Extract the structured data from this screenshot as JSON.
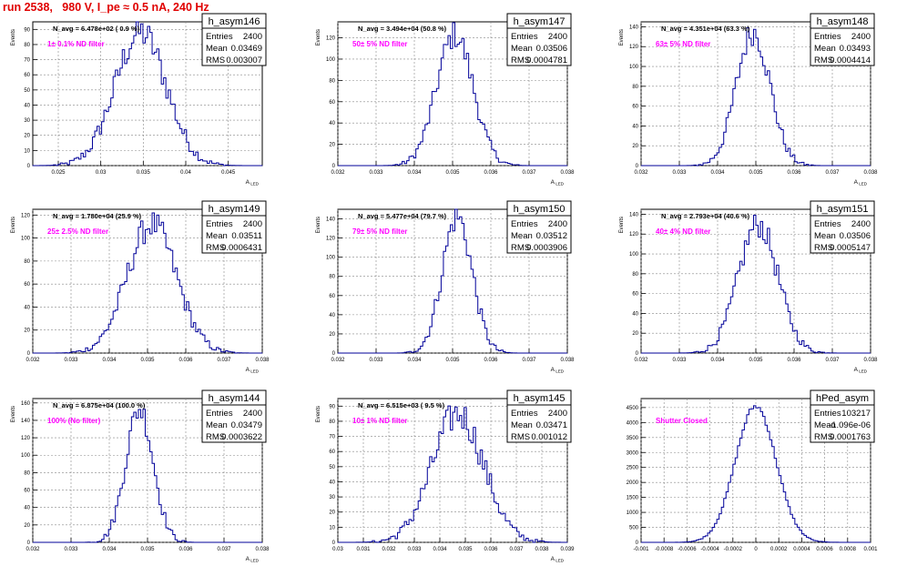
{
  "page_title": "run 2538,   980 V, I_pe ≈ 0.5 nA, 240 Hz",
  "colors": {
    "histogram_line": "#000099",
    "annotation": "#ff00ff",
    "title": "#e00000",
    "grid": "#888888"
  },
  "chart_data": [
    {
      "type": "histogram",
      "name": "h_asym146",
      "stats": {
        "entries_label": "Entries",
        "entries": "2400",
        "mean_label": "Mean",
        "mean": "0.03469",
        "rms_label": "RMS",
        "rms": "0.003007"
      },
      "navg": "N_avg = 6.478e+02 ( 0.9 %)",
      "annotation": "1± 0.1% ND filter",
      "xlabel": "A_{LED}",
      "ylabel": "Events",
      "xlim": [
        0.022,
        0.049
      ],
      "ylim": [
        0,
        95
      ],
      "xticks": [
        0.025,
        0.03,
        0.035,
        0.04,
        0.045
      ],
      "xtick_labels": [
        "0.025",
        "0.03",
        "0.035",
        "0.04",
        "0.045"
      ],
      "yticks": [
        0,
        10,
        20,
        30,
        40,
        50,
        60,
        70,
        80,
        90
      ],
      "shape": {
        "mean": 0.03469,
        "rms": 0.003007,
        "peak": 88
      }
    },
    {
      "type": "histogram",
      "name": "h_asym147",
      "stats": {
        "entries_label": "Entries",
        "entries": "2400",
        "mean_label": "Mean",
        "mean": "0.03506",
        "rms_label": "RMS",
        "rms": "0.0004781"
      },
      "navg": "N_avg = 3.494e+04 (50.8 %)",
      "annotation": "50± 5% ND filter",
      "xlabel": "A_{LED}",
      "ylabel": "Events",
      "xlim": [
        0.032,
        0.038
      ],
      "ylim": [
        0,
        135
      ],
      "xticks": [
        0.032,
        0.033,
        0.034,
        0.035,
        0.036,
        0.037,
        0.038
      ],
      "xtick_labels": [
        "0.032",
        "0.033",
        "0.034",
        "0.035",
        "0.036",
        "0.037",
        "0.038"
      ],
      "yticks": [
        0,
        20,
        40,
        60,
        80,
        100,
        120
      ],
      "shape": {
        "mean": 0.03506,
        "rms": 0.0004781,
        "peak": 123
      }
    },
    {
      "type": "histogram",
      "name": "h_asym148",
      "stats": {
        "entries_label": "Entries",
        "entries": "2400",
        "mean_label": "Mean",
        "mean": "0.03493",
        "rms_label": "RMS",
        "rms": "0.0004414"
      },
      "navg": "N_avg = 4.351e+04 (63.3 %)",
      "annotation": "63± 5% ND filter",
      "xlabel": "A_{LED}",
      "ylabel": "Events",
      "xlim": [
        0.032,
        0.038
      ],
      "ylim": [
        0,
        145
      ],
      "xticks": [
        0.032,
        0.033,
        0.034,
        0.035,
        0.036,
        0.037,
        0.038
      ],
      "xtick_labels": [
        "0.032",
        "0.033",
        "0.034",
        "0.035",
        "0.036",
        "0.037",
        "0.038"
      ],
      "yticks": [
        0,
        20,
        40,
        60,
        80,
        100,
        120,
        140
      ],
      "shape": {
        "mean": 0.03493,
        "rms": 0.0004414,
        "peak": 135
      }
    },
    {
      "type": "histogram",
      "name": "h_asym149",
      "stats": {
        "entries_label": "Entries",
        "entries": "2400",
        "mean_label": "Mean",
        "mean": "0.03511",
        "rms_label": "RMS",
        "rms": "0.0006431"
      },
      "navg": "N_avg = 1.780e+04 (25.9 %)",
      "annotation": "25± 2.5% ND filter",
      "xlabel": "A_{LED}",
      "ylabel": "Events",
      "xlim": [
        0.032,
        0.038
      ],
      "ylim": [
        0,
        125
      ],
      "xticks": [
        0.032,
        0.033,
        0.034,
        0.035,
        0.036,
        0.037,
        0.038
      ],
      "xtick_labels": [
        "0.032",
        "0.033",
        "0.034",
        "0.035",
        "0.036",
        "0.037",
        "0.038"
      ],
      "yticks": [
        0,
        20,
        40,
        60,
        80,
        100,
        120
      ],
      "shape": {
        "mean": 0.03511,
        "rms": 0.0006431,
        "peak": 112
      }
    },
    {
      "type": "histogram",
      "name": "h_asym150",
      "stats": {
        "entries_label": "Entries",
        "entries": "2400",
        "mean_label": "Mean",
        "mean": "0.03512",
        "rms_label": "RMS",
        "rms": "0.0003906"
      },
      "navg": "N_avg = 5.477e+04 (79.7 %)",
      "annotation": "79± 5% ND filter",
      "xlabel": "A_{LED}",
      "ylabel": "Events",
      "xlim": [
        0.032,
        0.038
      ],
      "ylim": [
        0,
        150
      ],
      "xticks": [
        0.032,
        0.033,
        0.034,
        0.035,
        0.036,
        0.037,
        0.038
      ],
      "xtick_labels": [
        "0.032",
        "0.033",
        "0.034",
        "0.035",
        "0.036",
        "0.037",
        "0.038"
      ],
      "yticks": [
        0,
        20,
        40,
        60,
        80,
        100,
        120,
        140
      ],
      "shape": {
        "mean": 0.03512,
        "rms": 0.0003906,
        "peak": 142
      }
    },
    {
      "type": "histogram",
      "name": "h_asym151",
      "stats": {
        "entries_label": "Entries",
        "entries": "2400",
        "mean_label": "Mean",
        "mean": "0.03506",
        "rms_label": "RMS",
        "rms": "0.0005147"
      },
      "navg": "N_avg = 2.793e+04 (40.6 %)",
      "annotation": "40± 4% ND filter",
      "xlabel": "A_{LED}",
      "ylabel": "Events",
      "xlim": [
        0.032,
        0.038
      ],
      "ylim": [
        0,
        145
      ],
      "xticks": [
        0.032,
        0.033,
        0.034,
        0.035,
        0.036,
        0.037,
        0.038
      ],
      "xtick_labels": [
        "0.032",
        "0.033",
        "0.034",
        "0.035",
        "0.036",
        "0.037",
        "0.038"
      ],
      "yticks": [
        0,
        20,
        40,
        60,
        80,
        100,
        120,
        140
      ],
      "shape": {
        "mean": 0.03506,
        "rms": 0.0005147,
        "peak": 130
      }
    },
    {
      "type": "histogram",
      "name": "h_asym144",
      "stats": {
        "entries_label": "Entries",
        "entries": "2400",
        "mean_label": "Mean",
        "mean": "0.03479",
        "rms_label": "RMS",
        "rms": "0.0003622"
      },
      "navg": "N_avg = 6.875e+04 (100.0 %)",
      "annotation": "100% (No filter)",
      "xlabel": "A_{LED}",
      "ylabel": "Events",
      "xlim": [
        0.032,
        0.038
      ],
      "ylim": [
        0,
        165
      ],
      "xticks": [
        0.032,
        0.033,
        0.034,
        0.035,
        0.036,
        0.037,
        0.038
      ],
      "xtick_labels": [
        "0.032",
        "0.033",
        "0.034",
        "0.035",
        "0.036",
        "0.037",
        "0.038"
      ],
      "yticks": [
        0,
        20,
        40,
        60,
        80,
        100,
        120,
        140,
        160
      ],
      "shape": {
        "mean": 0.03479,
        "rms": 0.0003622,
        "peak": 153
      }
    },
    {
      "type": "histogram",
      "name": "h_asym145",
      "stats": {
        "entries_label": "Entries",
        "entries": "2400",
        "mean_label": "Mean",
        "mean": "0.03471",
        "rms_label": "RMS",
        "rms": "0.001012"
      },
      "navg": "N_avg = 6.515e+03 ( 9.5 %)",
      "annotation": "10± 1% ND filter",
      "xlabel": "A_{LED}",
      "ylabel": "Events",
      "xlim": [
        0.03,
        0.039
      ],
      "ylim": [
        0,
        95
      ],
      "xticks": [
        0.03,
        0.031,
        0.032,
        0.033,
        0.034,
        0.035,
        0.036,
        0.037,
        0.038,
        0.039
      ],
      "xtick_labels": [
        "0.03",
        "0.031",
        "0.032",
        "0.033",
        "0.034",
        "0.035",
        "0.036",
        "0.037",
        "0.038",
        "0.039"
      ],
      "yticks": [
        0,
        10,
        20,
        30,
        40,
        50,
        60,
        70,
        80,
        90
      ],
      "shape": {
        "mean": 0.03471,
        "rms": 0.001012,
        "peak": 85
      }
    },
    {
      "type": "histogram",
      "name": "hPed_asym",
      "stats": {
        "entries_label": "Entries",
        "entries": "103217",
        "mean_label": "Mean",
        "mean": "-1.096e-06",
        "rms_label": "RMS",
        "rms": "0.0001763"
      },
      "navg": "",
      "annotation": "Shutter Closed",
      "xlabel": "",
      "ylabel": "",
      "xlim": [
        -0.001,
        0.001
      ],
      "ylim": [
        0,
        4800
      ],
      "xticks": [
        -0.001,
        -0.0008,
        -0.0006,
        -0.0004,
        -0.0002,
        0,
        0.0002,
        0.0004,
        0.0006,
        0.0008,
        0.001
      ],
      "xtick_labels": [
        "-0.001",
        "-0.0008",
        "-0.0006",
        "-0.0004",
        "-0.0002",
        "0",
        "0.0002",
        "0.0004",
        "0.0006",
        "0.0008",
        "0.001"
      ],
      "yticks": [
        0,
        500,
        1000,
        1500,
        2000,
        2500,
        3000,
        3500,
        4000,
        4500
      ],
      "shape": {
        "mean": -1.096e-06,
        "rms": 0.0001763,
        "peak": 4550
      }
    }
  ]
}
